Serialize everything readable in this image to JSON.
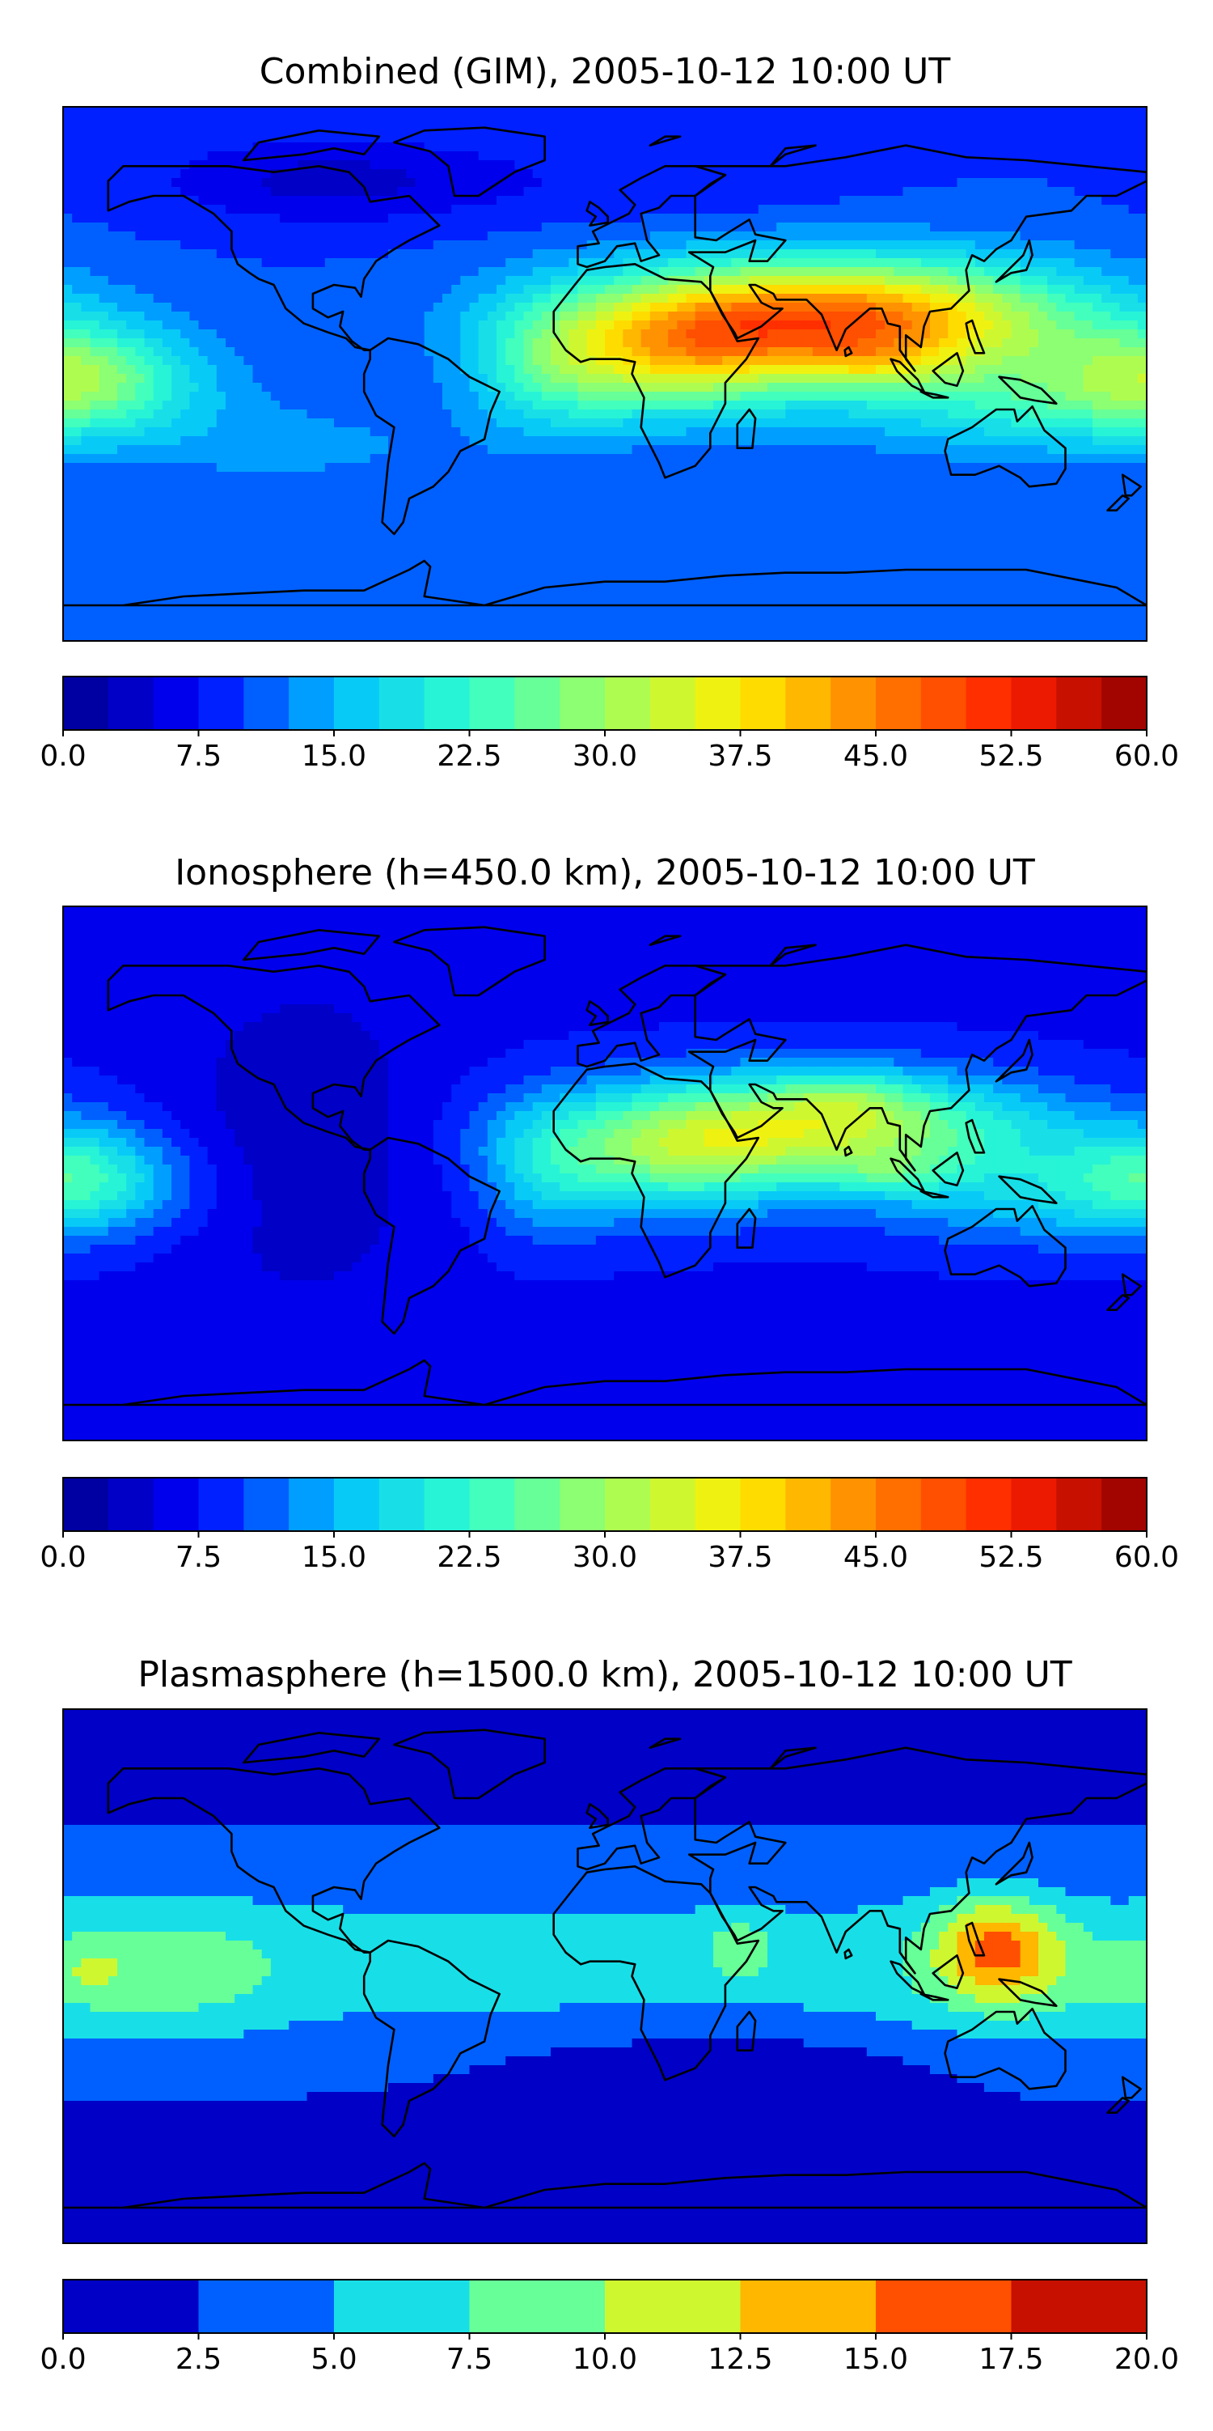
{
  "panels": [
    {
      "title": "Combined (GIM), 2005-10-12 10:00 UT",
      "colorbar": {
        "min": 0,
        "max": 60,
        "levels": 24,
        "ticks": [
          "0.0",
          "7.5",
          "15.0",
          "22.5",
          "30.0",
          "37.5",
          "45.0",
          "52.5",
          "60.0"
        ]
      },
      "field": {
        "base": 10,
        "blobs": [
          {
            "lon": 75,
            "lat": 18,
            "slon": 55,
            "slat": 14,
            "amp": 38
          },
          {
            "lon": 90,
            "lat": 4,
            "slon": 16,
            "slat": 6,
            "amp": 6
          },
          {
            "lon": 20,
            "lat": 4,
            "slon": 28,
            "slat": 14,
            "amp": 16
          },
          {
            "lon": -20,
            "lat": 0,
            "slon": 18,
            "slat": 16,
            "amp": 8
          },
          {
            "lon": 150,
            "lat": -10,
            "slon": 50,
            "slat": 12,
            "amp": 10
          },
          {
            "lon": -175,
            "lat": 0,
            "slon": 25,
            "slat": 12,
            "amp": 14
          },
          {
            "lon": -100,
            "lat": -25,
            "slon": 40,
            "slat": 10,
            "amp": 3
          },
          {
            "lon": -90,
            "lat": 65,
            "slon": 40,
            "slat": 10,
            "amp": -6
          },
          {
            "lon": 20,
            "lat": 65,
            "slon": 40,
            "slat": 10,
            "amp": -2
          }
        ]
      }
    },
    {
      "title": "Ionosphere  (h=450.0 km), 2005-10-12 10:00 UT",
      "colorbar": {
        "min": 0,
        "max": 60,
        "levels": 24,
        "ticks": [
          "0.0",
          "7.5",
          "15.0",
          "22.5",
          "30.0",
          "37.5",
          "45.0",
          "52.5",
          "60.0"
        ]
      },
      "field": {
        "base": 7,
        "blobs": [
          {
            "lon": 70,
            "lat": 15,
            "slon": 52,
            "slat": 13,
            "amp": 25
          },
          {
            "lon": 80,
            "lat": 26,
            "slon": 16,
            "slat": 6,
            "amp": 6
          },
          {
            "lon": 95,
            "lat": 0,
            "slon": 14,
            "slat": 5,
            "amp": 5
          },
          {
            "lon": 20,
            "lat": 4,
            "slon": 28,
            "slat": 14,
            "amp": 12
          },
          {
            "lon": -20,
            "lat": 0,
            "slon": 16,
            "slat": 16,
            "amp": 7
          },
          {
            "lon": 150,
            "lat": -8,
            "slon": 45,
            "slat": 12,
            "amp": 8
          },
          {
            "lon": -175,
            "lat": 0,
            "slon": 22,
            "slat": 12,
            "amp": 12
          },
          {
            "lon": -100,
            "lat": 10,
            "slon": 30,
            "slat": 40,
            "amp": -4
          }
        ]
      }
    },
    {
      "title": "Plasmasphere (h=1500.0 km), 2005-10-12 10:00 UT",
      "colorbar": {
        "min": 0,
        "max": 20,
        "levels": 8,
        "ticks": [
          "0.0",
          "2.5",
          "5.0",
          "7.5",
          "10.0",
          "12.5",
          "15.0",
          "17.5",
          "20.0"
        ]
      },
      "field": {
        "base": 2.2,
        "blobs": [
          {
            "lon": 0,
            "lat": 5,
            "slon": 400,
            "slat": 20,
            "amp": 4
          },
          {
            "lon": -150,
            "lat": 0,
            "slon": 30,
            "slat": 16,
            "amp": 3.5
          },
          {
            "lon": -170,
            "lat": 2,
            "slon": 5,
            "slat": 4,
            "amp": 2.5
          },
          {
            "lon": 45,
            "lat": 9,
            "slon": 7,
            "slat": 7,
            "amp": 4
          },
          {
            "lon": 130,
            "lat": 10,
            "slon": 14,
            "slat": 12,
            "amp": 9
          },
          {
            "lon": 135,
            "lat": -5,
            "slon": 30,
            "slat": 16,
            "amp": 2
          },
          {
            "lon": 40,
            "lat": -30,
            "slon": 50,
            "slat": 10,
            "amp": -2
          }
        ]
      }
    }
  ],
  "colors": [
    "#00008f",
    "#0000ff",
    "#00bfff",
    "#2fffcf",
    "#9fff60",
    "#ffef00",
    "#ff7f00",
    "#ff1f00",
    "#8f0000"
  ]
}
